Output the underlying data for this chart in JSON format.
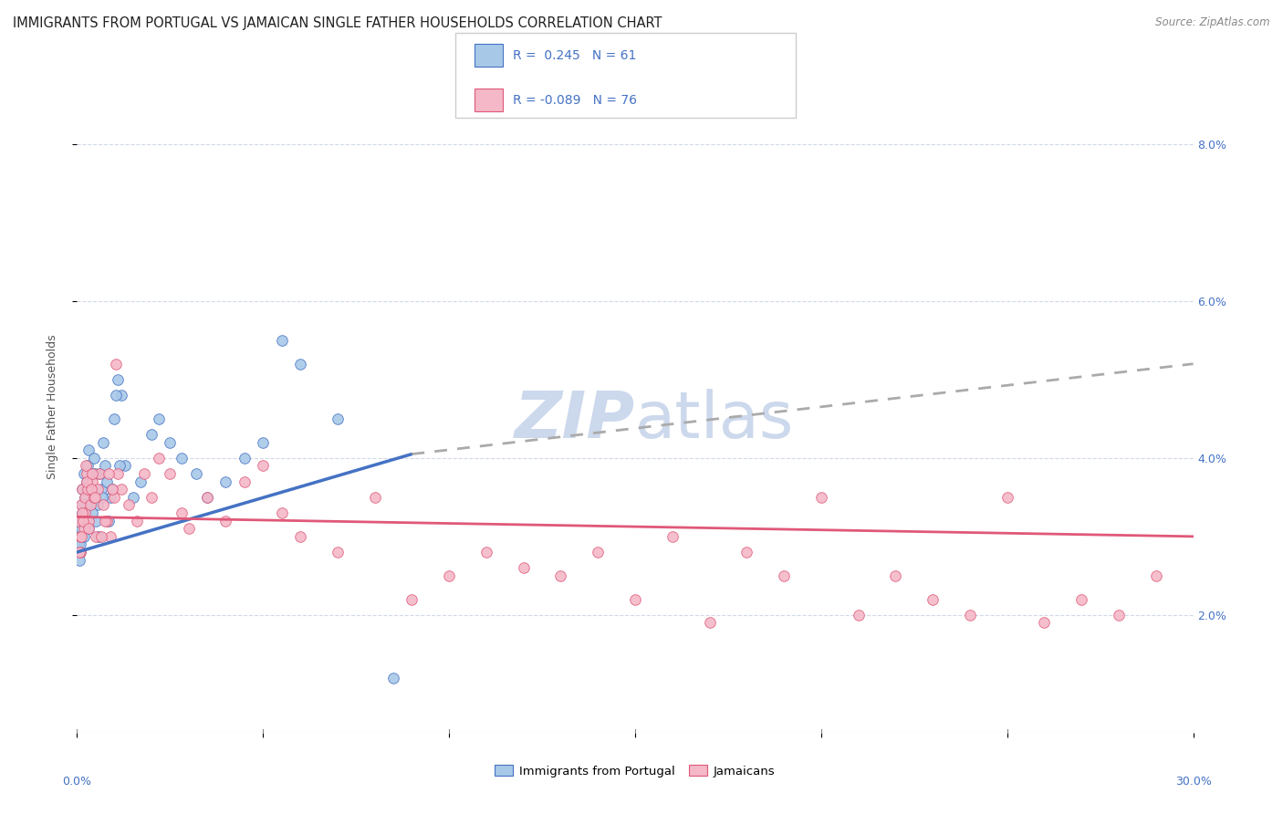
{
  "title": "IMMIGRANTS FROM PORTUGAL VS JAMAICAN SINGLE FATHER HOUSEHOLDS CORRELATION CHART",
  "source": "Source: ZipAtlas.com",
  "ylabel": "Single Father Households",
  "legend_label1": "Immigrants from Portugal",
  "legend_label2": "Jamaicans",
  "color_blue": "#a8c8e8",
  "color_pink": "#f4b8c8",
  "color_blue_dark": "#4472c4",
  "color_pink_dark": "#e05878",
  "line_blue": "#4472c4",
  "line_pink": "#e05878",
  "line_dashed_color": "#aaaaaa",
  "xmin": 0.0,
  "xmax": 30.0,
  "ymin": 0.5,
  "ymax": 8.8,
  "watermark_color": "#ccd8ec",
  "background_color": "#ffffff",
  "grid_color": "#d0d8e8",
  "portugal_x": [
    0.05,
    0.07,
    0.08,
    0.1,
    0.12,
    0.13,
    0.15,
    0.18,
    0.2,
    0.22,
    0.25,
    0.28,
    0.3,
    0.35,
    0.38,
    0.4,
    0.45,
    0.5,
    0.55,
    0.6,
    0.65,
    0.7,
    0.75,
    0.8,
    0.9,
    1.0,
    1.1,
    1.2,
    1.3,
    1.5,
    1.7,
    2.0,
    2.2,
    2.5,
    2.8,
    3.2,
    3.5,
    4.0,
    4.5,
    5.0,
    5.5,
    6.0,
    7.0,
    0.06,
    0.09,
    0.11,
    0.14,
    0.16,
    0.19,
    0.23,
    0.27,
    0.32,
    0.42,
    0.48,
    0.58,
    0.68,
    0.85,
    0.95,
    1.05,
    1.15,
    8.5
  ],
  "portugal_y": [
    2.9,
    3.1,
    2.8,
    3.0,
    3.2,
    3.4,
    3.6,
    3.8,
    3.5,
    3.3,
    3.7,
    3.9,
    4.1,
    3.4,
    3.6,
    3.8,
    4.0,
    3.2,
    3.4,
    3.8,
    3.6,
    4.2,
    3.9,
    3.7,
    3.5,
    4.5,
    5.0,
    4.8,
    3.9,
    3.5,
    3.7,
    4.3,
    4.5,
    4.2,
    4.0,
    3.8,
    3.5,
    3.7,
    4.0,
    4.2,
    5.5,
    5.2,
    4.5,
    2.7,
    2.9,
    3.1,
    3.3,
    3.2,
    3.0,
    3.4,
    3.6,
    3.1,
    3.3,
    3.8,
    3.0,
    3.5,
    3.2,
    3.6,
    4.8,
    3.9,
    1.2
  ],
  "jamaica_x": [
    0.05,
    0.08,
    0.1,
    0.12,
    0.15,
    0.18,
    0.2,
    0.22,
    0.25,
    0.28,
    0.3,
    0.35,
    0.4,
    0.45,
    0.5,
    0.55,
    0.6,
    0.7,
    0.8,
    0.9,
    1.0,
    1.1,
    1.2,
    1.4,
    1.6,
    1.8,
    2.0,
    2.2,
    2.5,
    2.8,
    3.0,
    3.5,
    4.0,
    4.5,
    5.0,
    5.5,
    6.0,
    7.0,
    8.0,
    9.0,
    10.0,
    11.0,
    12.0,
    13.0,
    14.0,
    15.0,
    16.0,
    17.0,
    18.0,
    19.0,
    20.0,
    21.0,
    22.0,
    23.0,
    24.0,
    25.0,
    26.0,
    27.0,
    28.0,
    29.0,
    0.07,
    0.11,
    0.14,
    0.17,
    0.23,
    0.27,
    0.32,
    0.38,
    0.42,
    0.48,
    0.65,
    0.75,
    0.85,
    0.95,
    1.05
  ],
  "jamaica_y": [
    3.2,
    3.0,
    2.8,
    3.4,
    3.6,
    3.1,
    3.5,
    3.3,
    3.8,
    3.6,
    3.2,
    3.4,
    3.7,
    3.5,
    3.0,
    3.6,
    3.8,
    3.4,
    3.2,
    3.0,
    3.5,
    3.8,
    3.6,
    3.4,
    3.2,
    3.8,
    3.5,
    4.0,
    3.8,
    3.3,
    3.1,
    3.5,
    3.2,
    3.7,
    3.9,
    3.3,
    3.0,
    2.8,
    3.5,
    2.2,
    2.5,
    2.8,
    2.6,
    2.5,
    2.8,
    2.2,
    3.0,
    1.9,
    2.8,
    2.5,
    3.5,
    2.0,
    2.5,
    2.2,
    2.0,
    3.5,
    1.9,
    2.2,
    2.0,
    2.5,
    2.8,
    3.0,
    3.3,
    3.2,
    3.9,
    3.7,
    3.1,
    3.6,
    3.8,
    3.5,
    3.0,
    3.2,
    3.8,
    3.6,
    5.2
  ],
  "blue_line_x0": 0.0,
  "blue_line_x_solid_end": 9.0,
  "blue_line_x1": 30.0,
  "blue_line_y0": 2.8,
  "blue_line_y_solid_end": 4.05,
  "blue_line_y1": 5.2,
  "pink_line_x0": 0.0,
  "pink_line_x1": 30.0,
  "pink_line_y0": 3.25,
  "pink_line_y1": 3.0
}
